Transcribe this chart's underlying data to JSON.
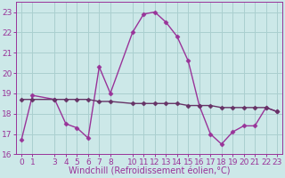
{
  "xlabel": "Windchill (Refroidissement éolien,°C)",
  "background_color": "#cce8e8",
  "grid_color": "#aacfcf",
  "line_color": "#993399",
  "line2_color": "#663366",
  "ylim": [
    16,
    23.5
  ],
  "xlim": [
    -0.5,
    23.5
  ],
  "yticks": [
    16,
    17,
    18,
    19,
    20,
    21,
    22,
    23
  ],
  "xticks": [
    0,
    1,
    3,
    4,
    5,
    6,
    7,
    8,
    10,
    11,
    12,
    13,
    14,
    15,
    16,
    17,
    18,
    19,
    20,
    21,
    22,
    23
  ],
  "series1_x": [
    0,
    1,
    3,
    4,
    5,
    6,
    7,
    8,
    10,
    11,
    12,
    13,
    14,
    15,
    16,
    17,
    18,
    19,
    20,
    21,
    22,
    23
  ],
  "series1_y": [
    16.7,
    18.9,
    18.7,
    17.5,
    17.3,
    16.8,
    20.3,
    19.0,
    22.0,
    22.9,
    23.0,
    22.5,
    21.8,
    20.6,
    18.4,
    17.0,
    16.5,
    17.1,
    17.4,
    17.4,
    18.3,
    18.1
  ],
  "series2_x": [
    0,
    1,
    3,
    4,
    5,
    6,
    7,
    8,
    10,
    11,
    12,
    13,
    14,
    15,
    16,
    17,
    18,
    19,
    20,
    21,
    22,
    23
  ],
  "series2_y": [
    18.7,
    18.7,
    18.7,
    18.7,
    18.7,
    18.7,
    18.6,
    18.6,
    18.5,
    18.5,
    18.5,
    18.5,
    18.5,
    18.4,
    18.4,
    18.4,
    18.3,
    18.3,
    18.3,
    18.3,
    18.3,
    18.1
  ],
  "marker": "D",
  "markersize": 2.5,
  "linewidth": 1.0,
  "tick_fontsize": 6.5,
  "label_fontsize": 7.0
}
